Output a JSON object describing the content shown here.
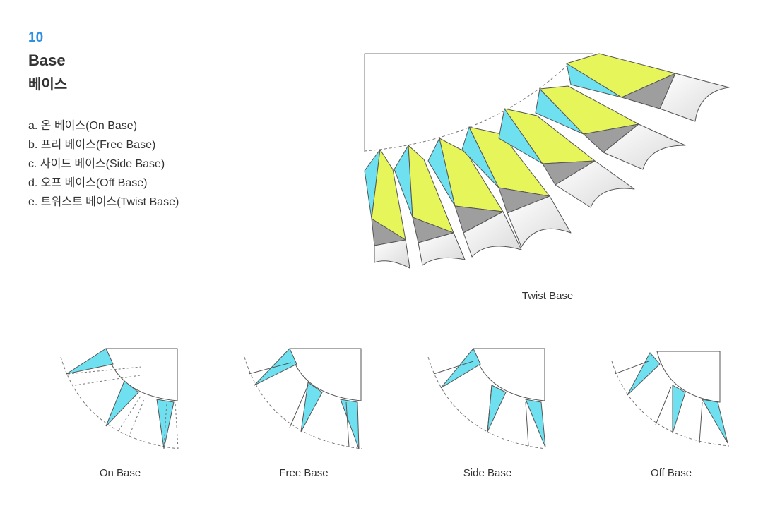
{
  "header": {
    "number": "10",
    "title_en": "Base",
    "title_ko": "베이스"
  },
  "types": [
    "a. 온 베이스(On Base)",
    "b. 프리 베이스(Free Base)",
    "c. 사이드 베이스(Side Base)",
    "d. 오프 베이스(Off Base)",
    "e. 트위스트 베이스(Twist Base)"
  ],
  "captions": {
    "twist": "Twist Base",
    "on": "On Base",
    "free": "Free Base",
    "side": "Side Base",
    "off": "Off Base"
  },
  "colors": {
    "accent": "#2f8fe0",
    "base_cyan": "#6ee0f0",
    "leaf_yellow": "#e6f55a",
    "shadow_gray": "#9e9e9e",
    "outline": "#555555"
  }
}
